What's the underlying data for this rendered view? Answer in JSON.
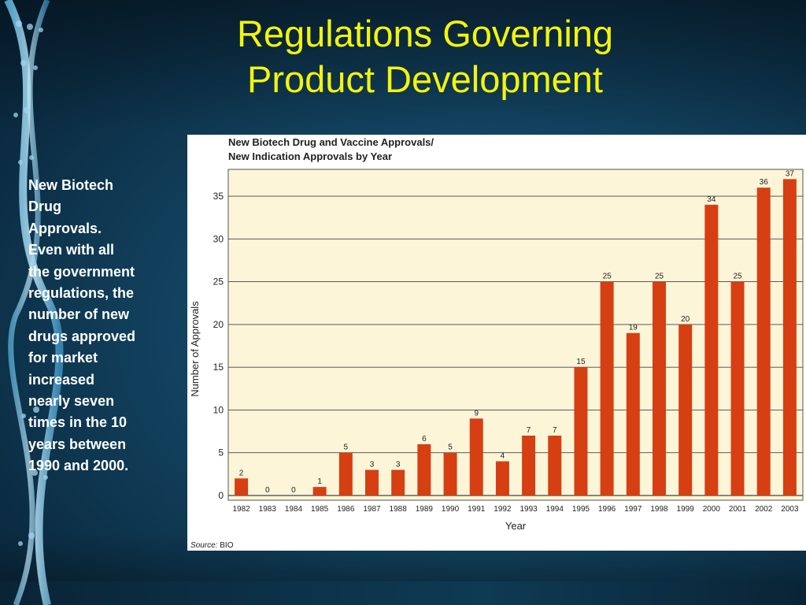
{
  "slide": {
    "title_lines": [
      "Regulations Governing",
      "Product Development"
    ],
    "body_lines": [
      "New Biotech",
      "Drug",
      "Approvals.",
      "Even with all",
      "the government",
      "regulations, the",
      "number of new",
      "drugs approved",
      "for market",
      "increased",
      "nearly seven",
      "times in the 10",
      "years between",
      "1990 and 2000."
    ],
    "colors": {
      "title": "#f4f40c",
      "body_text": "#ffffff",
      "background": "#12425f",
      "bar": "#d63f12",
      "plot_bg": "#fdf5d8"
    }
  },
  "chart_data": {
    "type": "bar",
    "title_lines": [
      "New Biotech Drug and Vaccine Approvals/",
      "New Indication Approvals by Year"
    ],
    "xlabel": "Year",
    "ylabel": "Number of Approvals",
    "categories": [
      "1982",
      "1983",
      "1984",
      "1985",
      "1986",
      "1987",
      "1988",
      "1989",
      "1990",
      "1991",
      "1992",
      "1993",
      "1994",
      "1995",
      "1996",
      "1997",
      "1998",
      "1999",
      "2000",
      "2001",
      "2002",
      "2003"
    ],
    "values": [
      2,
      0,
      0,
      1,
      5,
      3,
      3,
      6,
      5,
      9,
      4,
      7,
      7,
      15,
      25,
      19,
      25,
      20,
      34,
      25,
      36,
      37
    ],
    "yticks": [
      0,
      5,
      10,
      15,
      20,
      25,
      30,
      35
    ],
    "ylim": [
      0,
      37.4
    ],
    "grid": true,
    "source_prefix": "Source:",
    "source_value": "BIO"
  }
}
